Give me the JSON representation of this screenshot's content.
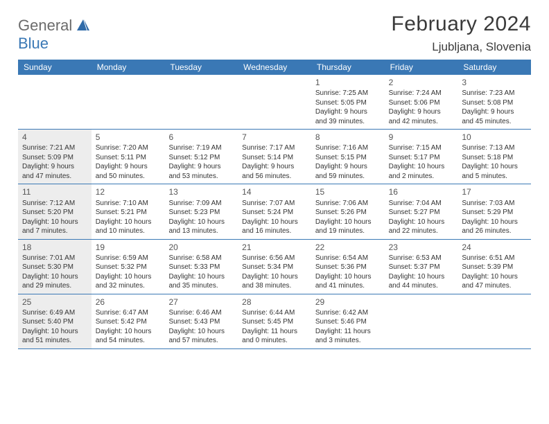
{
  "logo": {
    "general": "General",
    "blue": "Blue"
  },
  "title": "February 2024",
  "location": "Ljubljana, Slovenia",
  "day_names": [
    "Sunday",
    "Monday",
    "Tuesday",
    "Wednesday",
    "Thursday",
    "Friday",
    "Saturday"
  ],
  "colors": {
    "header_bg": "#3a78b5",
    "header_text": "#ffffff",
    "body_text": "#333333",
    "shade_bg": "#ededed",
    "border": "#3a78b5"
  },
  "weeks": [
    [
      {
        "day": "",
        "sunrise": "",
        "sunset": "",
        "daylight": "",
        "shaded": false
      },
      {
        "day": "",
        "sunrise": "",
        "sunset": "",
        "daylight": "",
        "shaded": false
      },
      {
        "day": "",
        "sunrise": "",
        "sunset": "",
        "daylight": "",
        "shaded": false
      },
      {
        "day": "",
        "sunrise": "",
        "sunset": "",
        "daylight": "",
        "shaded": false
      },
      {
        "day": "1",
        "sunrise": "Sunrise: 7:25 AM",
        "sunset": "Sunset: 5:05 PM",
        "daylight": "Daylight: 9 hours and 39 minutes.",
        "shaded": false
      },
      {
        "day": "2",
        "sunrise": "Sunrise: 7:24 AM",
        "sunset": "Sunset: 5:06 PM",
        "daylight": "Daylight: 9 hours and 42 minutes.",
        "shaded": false
      },
      {
        "day": "3",
        "sunrise": "Sunrise: 7:23 AM",
        "sunset": "Sunset: 5:08 PM",
        "daylight": "Daylight: 9 hours and 45 minutes.",
        "shaded": false
      }
    ],
    [
      {
        "day": "4",
        "sunrise": "Sunrise: 7:21 AM",
        "sunset": "Sunset: 5:09 PM",
        "daylight": "Daylight: 9 hours and 47 minutes.",
        "shaded": true
      },
      {
        "day": "5",
        "sunrise": "Sunrise: 7:20 AM",
        "sunset": "Sunset: 5:11 PM",
        "daylight": "Daylight: 9 hours and 50 minutes.",
        "shaded": false
      },
      {
        "day": "6",
        "sunrise": "Sunrise: 7:19 AM",
        "sunset": "Sunset: 5:12 PM",
        "daylight": "Daylight: 9 hours and 53 minutes.",
        "shaded": false
      },
      {
        "day": "7",
        "sunrise": "Sunrise: 7:17 AM",
        "sunset": "Sunset: 5:14 PM",
        "daylight": "Daylight: 9 hours and 56 minutes.",
        "shaded": false
      },
      {
        "day": "8",
        "sunrise": "Sunrise: 7:16 AM",
        "sunset": "Sunset: 5:15 PM",
        "daylight": "Daylight: 9 hours and 59 minutes.",
        "shaded": false
      },
      {
        "day": "9",
        "sunrise": "Sunrise: 7:15 AM",
        "sunset": "Sunset: 5:17 PM",
        "daylight": "Daylight: 10 hours and 2 minutes.",
        "shaded": false
      },
      {
        "day": "10",
        "sunrise": "Sunrise: 7:13 AM",
        "sunset": "Sunset: 5:18 PM",
        "daylight": "Daylight: 10 hours and 5 minutes.",
        "shaded": false
      }
    ],
    [
      {
        "day": "11",
        "sunrise": "Sunrise: 7:12 AM",
        "sunset": "Sunset: 5:20 PM",
        "daylight": "Daylight: 10 hours and 7 minutes.",
        "shaded": true
      },
      {
        "day": "12",
        "sunrise": "Sunrise: 7:10 AM",
        "sunset": "Sunset: 5:21 PM",
        "daylight": "Daylight: 10 hours and 10 minutes.",
        "shaded": false
      },
      {
        "day": "13",
        "sunrise": "Sunrise: 7:09 AM",
        "sunset": "Sunset: 5:23 PM",
        "daylight": "Daylight: 10 hours and 13 minutes.",
        "shaded": false
      },
      {
        "day": "14",
        "sunrise": "Sunrise: 7:07 AM",
        "sunset": "Sunset: 5:24 PM",
        "daylight": "Daylight: 10 hours and 16 minutes.",
        "shaded": false
      },
      {
        "day": "15",
        "sunrise": "Sunrise: 7:06 AM",
        "sunset": "Sunset: 5:26 PM",
        "daylight": "Daylight: 10 hours and 19 minutes.",
        "shaded": false
      },
      {
        "day": "16",
        "sunrise": "Sunrise: 7:04 AM",
        "sunset": "Sunset: 5:27 PM",
        "daylight": "Daylight: 10 hours and 22 minutes.",
        "shaded": false
      },
      {
        "day": "17",
        "sunrise": "Sunrise: 7:03 AM",
        "sunset": "Sunset: 5:29 PM",
        "daylight": "Daylight: 10 hours and 26 minutes.",
        "shaded": false
      }
    ],
    [
      {
        "day": "18",
        "sunrise": "Sunrise: 7:01 AM",
        "sunset": "Sunset: 5:30 PM",
        "daylight": "Daylight: 10 hours and 29 minutes.",
        "shaded": true
      },
      {
        "day": "19",
        "sunrise": "Sunrise: 6:59 AM",
        "sunset": "Sunset: 5:32 PM",
        "daylight": "Daylight: 10 hours and 32 minutes.",
        "shaded": false
      },
      {
        "day": "20",
        "sunrise": "Sunrise: 6:58 AM",
        "sunset": "Sunset: 5:33 PM",
        "daylight": "Daylight: 10 hours and 35 minutes.",
        "shaded": false
      },
      {
        "day": "21",
        "sunrise": "Sunrise: 6:56 AM",
        "sunset": "Sunset: 5:34 PM",
        "daylight": "Daylight: 10 hours and 38 minutes.",
        "shaded": false
      },
      {
        "day": "22",
        "sunrise": "Sunrise: 6:54 AM",
        "sunset": "Sunset: 5:36 PM",
        "daylight": "Daylight: 10 hours and 41 minutes.",
        "shaded": false
      },
      {
        "day": "23",
        "sunrise": "Sunrise: 6:53 AM",
        "sunset": "Sunset: 5:37 PM",
        "daylight": "Daylight: 10 hours and 44 minutes.",
        "shaded": false
      },
      {
        "day": "24",
        "sunrise": "Sunrise: 6:51 AM",
        "sunset": "Sunset: 5:39 PM",
        "daylight": "Daylight: 10 hours and 47 minutes.",
        "shaded": false
      }
    ],
    [
      {
        "day": "25",
        "sunrise": "Sunrise: 6:49 AM",
        "sunset": "Sunset: 5:40 PM",
        "daylight": "Daylight: 10 hours and 51 minutes.",
        "shaded": true
      },
      {
        "day": "26",
        "sunrise": "Sunrise: 6:47 AM",
        "sunset": "Sunset: 5:42 PM",
        "daylight": "Daylight: 10 hours and 54 minutes.",
        "shaded": false
      },
      {
        "day": "27",
        "sunrise": "Sunrise: 6:46 AM",
        "sunset": "Sunset: 5:43 PM",
        "daylight": "Daylight: 10 hours and 57 minutes.",
        "shaded": false
      },
      {
        "day": "28",
        "sunrise": "Sunrise: 6:44 AM",
        "sunset": "Sunset: 5:45 PM",
        "daylight": "Daylight: 11 hours and 0 minutes.",
        "shaded": false
      },
      {
        "day": "29",
        "sunrise": "Sunrise: 6:42 AM",
        "sunset": "Sunset: 5:46 PM",
        "daylight": "Daylight: 11 hours and 3 minutes.",
        "shaded": false
      },
      {
        "day": "",
        "sunrise": "",
        "sunset": "",
        "daylight": "",
        "shaded": false
      },
      {
        "day": "",
        "sunrise": "",
        "sunset": "",
        "daylight": "",
        "shaded": false
      }
    ]
  ]
}
